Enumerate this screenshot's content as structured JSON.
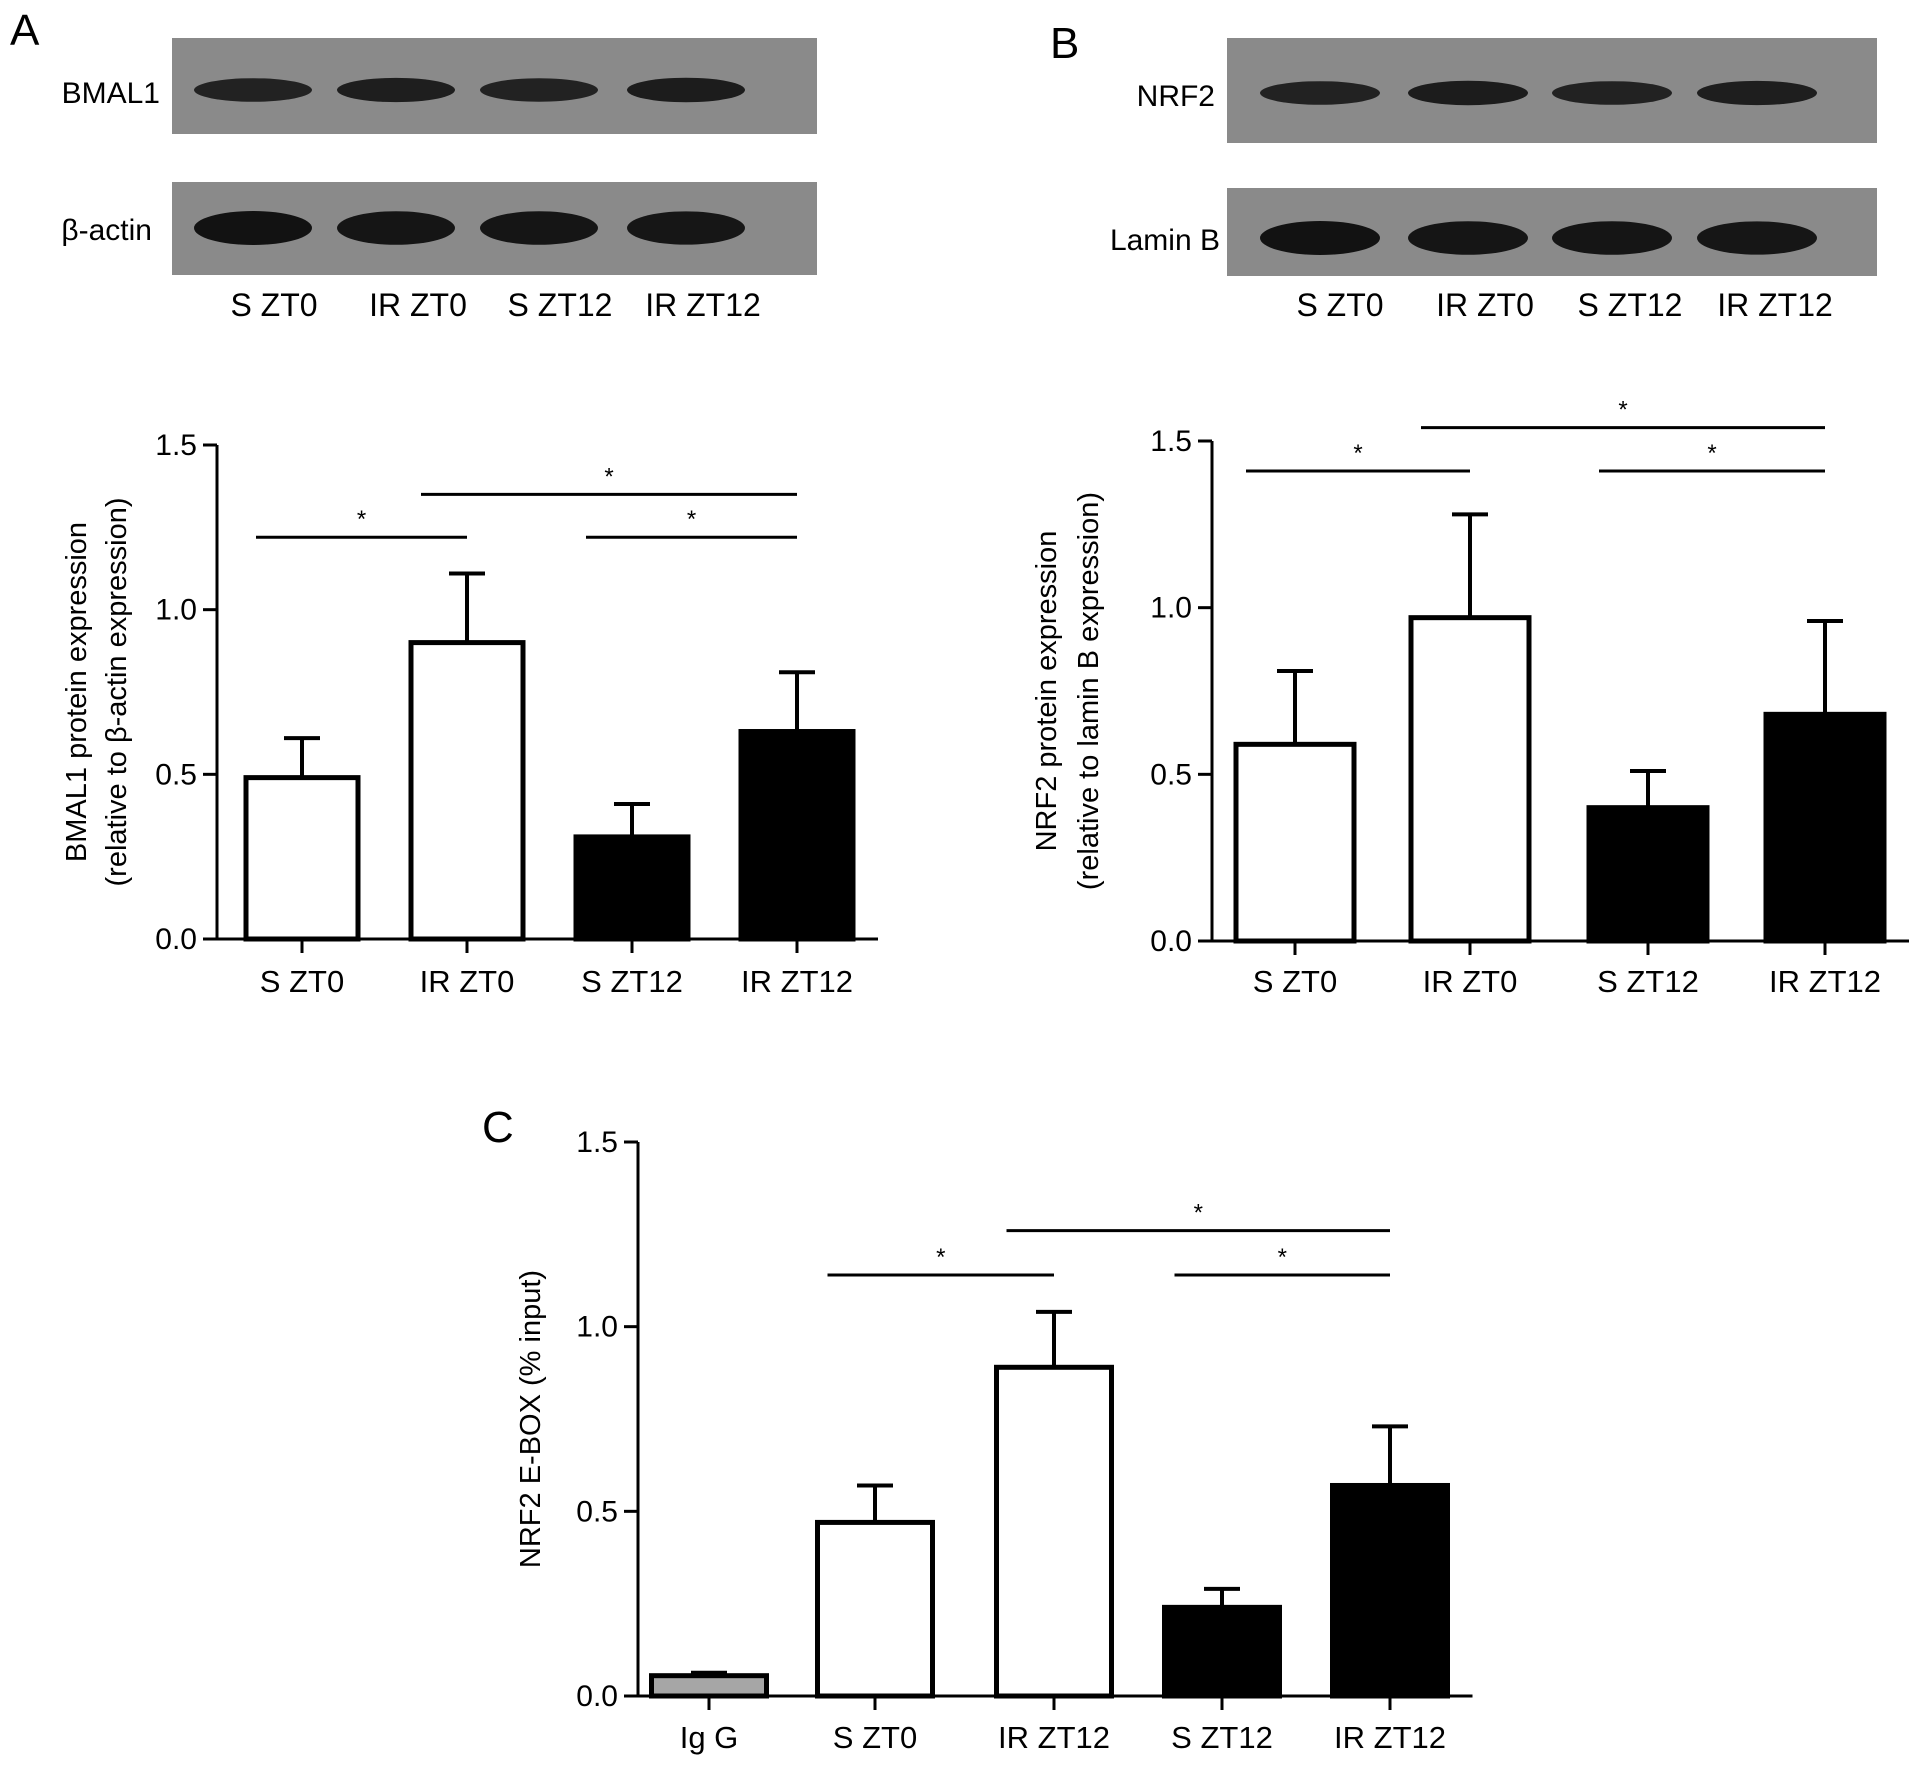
{
  "panels": {
    "A": {
      "letter": "A",
      "blot": {
        "rows": [
          {
            "label": "BMAL1",
            "bands": [
              0.7,
              0.78,
              0.68,
              0.82
            ]
          },
          {
            "label": "β-actin",
            "bands": [
              1.0,
              0.95,
              0.95,
              0.92
            ]
          }
        ],
        "lanes": [
          "S ZT0",
          "IR ZT0",
          "S ZT12",
          "IR ZT12"
        ]
      }
    },
    "B": {
      "letter": "B",
      "blot": {
        "rows": [
          {
            "label": "NRF2",
            "bands": [
              0.7,
              0.8,
              0.7,
              0.78
            ]
          },
          {
            "label": "Lamin B",
            "bands": [
              1.0,
              0.95,
              0.95,
              0.92
            ]
          }
        ],
        "lanes": [
          "S ZT0",
          "IR ZT0",
          "S ZT12",
          "IR ZT12"
        ]
      }
    },
    "C": {
      "letter": "C"
    }
  },
  "chart_data": [
    {
      "panel": "A",
      "type": "bar",
      "categories": [
        "S ZT0",
        "IR ZT0",
        "S ZT12",
        "IR ZT12"
      ],
      "values": [
        0.49,
        0.9,
        0.31,
        0.63
      ],
      "errors": [
        0.12,
        0.21,
        0.1,
        0.18
      ],
      "fills": [
        "white",
        "white",
        "black",
        "black"
      ],
      "ylabel_lines": [
        "BMAL1 protein expression",
        "(relative to β-actin expression)"
      ],
      "ylim": [
        0,
        1.5
      ],
      "yticks": [
        "0.0",
        "0.5",
        "1.0",
        "1.5"
      ],
      "significance": [
        {
          "from": 0,
          "to": 1,
          "label": "*",
          "y": 1.22
        },
        {
          "from": 1,
          "to": 3,
          "label": "*",
          "y": 1.35
        },
        {
          "from": 2,
          "to": 3,
          "label": "*",
          "y": 1.22
        }
      ]
    },
    {
      "panel": "B",
      "type": "bar",
      "categories": [
        "S ZT0",
        "IR ZT0",
        "S ZT12",
        "IR ZT12"
      ],
      "values": [
        0.59,
        0.97,
        0.4,
        0.68
      ],
      "errors": [
        0.22,
        0.31,
        0.11,
        0.28
      ],
      "fills": [
        "white",
        "white",
        "black",
        "black"
      ],
      "ylabel_lines": [
        "NRF2 protein expression",
        "(relative to lamin B expression)"
      ],
      "ylim": [
        0,
        1.5
      ],
      "yticks": [
        "0.0",
        "0.5",
        "1.0",
        "1.5"
      ],
      "significance": [
        {
          "from": 0,
          "to": 1,
          "label": "*",
          "y": 1.41
        },
        {
          "from": 1,
          "to": 3,
          "label": "*",
          "y": 1.54
        },
        {
          "from": 2,
          "to": 3,
          "label": "*",
          "y": 1.41
        }
      ]
    },
    {
      "panel": "C",
      "type": "bar",
      "categories": [
        "Ig G",
        "S ZT0",
        "IR ZT12",
        "S ZT12",
        "IR ZT12"
      ],
      "values": [
        0.055,
        0.47,
        0.89,
        0.24,
        0.57
      ],
      "errors": [
        0.008,
        0.1,
        0.15,
        0.05,
        0.16
      ],
      "fills": [
        "gray",
        "white",
        "white",
        "black",
        "black"
      ],
      "ylabel_lines": [
        "NRF2 E-BOX (% input)"
      ],
      "ylim": [
        0,
        1.5
      ],
      "yticks": [
        "0.0",
        "0.5",
        "1.0",
        "1.5"
      ],
      "significance": [
        {
          "from": 1,
          "to": 2,
          "label": "*",
          "y": 1.14
        },
        {
          "from": 2,
          "to": 4,
          "label": "*",
          "y": 1.26
        },
        {
          "from": 3,
          "to": 4,
          "label": "*",
          "y": 1.14
        }
      ]
    }
  ],
  "colors": {
    "black": "#000000",
    "white": "#ffffff",
    "gray": "#a6a6a6",
    "blot_bg": "#8a8a8a",
    "band": "#121212"
  }
}
